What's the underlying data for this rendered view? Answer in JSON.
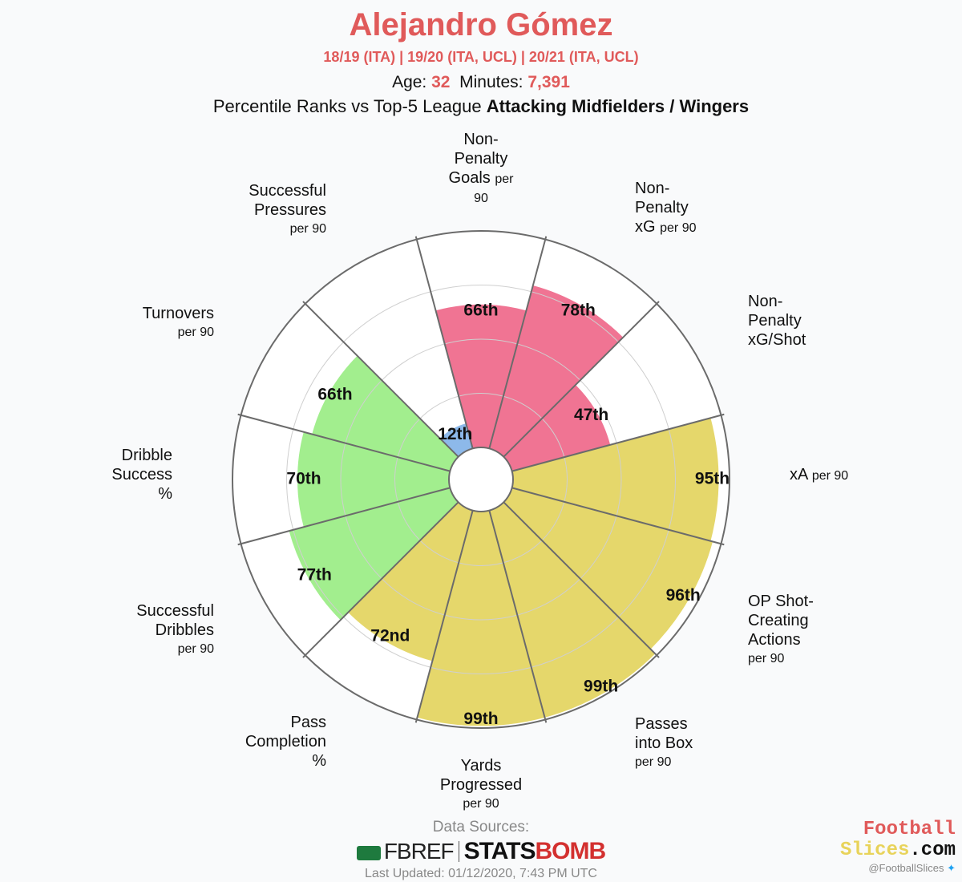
{
  "header": {
    "title": "Alejandro Gómez",
    "seasons": "18/19 (ITA)  |  19/20 (ITA, UCL)  |  20/21 (ITA, UCL)",
    "age_label": "Age:",
    "age": "32",
    "minutes_label": "Minutes:",
    "minutes": "7,391",
    "subtitle_prefix": "Percentile Ranks vs Top-5 League",
    "subtitle_bold": "Attacking Midfielders / Wingers"
  },
  "colors": {
    "attacking": "#f07493",
    "possession": "#e5d76b",
    "dribbling": "#a2ee8e",
    "defending": "#8db9ea",
    "title": "#e05a5a"
  },
  "chart_data": {
    "type": "polar-bar",
    "title": "Alejandro Gómez",
    "scale": [
      0,
      100
    ],
    "categories": [
      {
        "metric": "Non-Penalty Goals",
        "unit": "per 90",
        "percentile": 66,
        "label": "66th",
        "group": "attacking"
      },
      {
        "metric": "Non-Penalty xG",
        "unit": "per 90",
        "percentile": 78,
        "label": "78th",
        "group": "attacking"
      },
      {
        "metric": "Non-Penalty xG/Shot",
        "unit": "",
        "percentile": 47,
        "label": "47th",
        "group": "attacking"
      },
      {
        "metric": "xA",
        "unit": "per 90",
        "percentile": 95,
        "label": "95th",
        "group": "possession"
      },
      {
        "metric": "OP Shot-Creating Actions",
        "unit": "per 90",
        "percentile": 96,
        "label": "96th",
        "group": "possession"
      },
      {
        "metric": "Passes into Box",
        "unit": "per 90",
        "percentile": 99,
        "label": "99th",
        "group": "possession"
      },
      {
        "metric": "Yards Progressed",
        "unit": "per 90",
        "percentile": 99,
        "label": "99th",
        "group": "possession"
      },
      {
        "metric": "Pass Completion",
        "unit": "%",
        "percentile": 72,
        "label": "72nd",
        "group": "possession"
      },
      {
        "metric": "Successful Dribbles",
        "unit": "per 90",
        "percentile": 77,
        "label": "77th",
        "group": "dribbling"
      },
      {
        "metric": "Dribble Success",
        "unit": "%",
        "percentile": 70,
        "label": "70th",
        "group": "dribbling"
      },
      {
        "metric": "Turnovers",
        "unit": "per 90",
        "percentile": 66,
        "label": "66th",
        "group": "dribbling"
      },
      {
        "metric": "Successful Pressures",
        "unit": "per 90",
        "percentile": 12,
        "label": "12th",
        "group": "defending"
      }
    ]
  },
  "axis_labels": {
    "npg": {
      "lines": [
        "Non-",
        "Penalty",
        "Goals"
      ],
      "unit": "per",
      "unit2": "90"
    },
    "npxg": {
      "lines": [
        "Non-",
        "Penalty",
        "xG"
      ],
      "unit": "per 90"
    },
    "xgshot": {
      "lines": [
        "Non-",
        "Penalty",
        "xG/Shot"
      ]
    },
    "xa": {
      "main": "xA",
      "unit": "per 90"
    },
    "sca": {
      "lines": [
        "OP Shot-",
        "Creating",
        "Actions"
      ],
      "unit": "per 90"
    },
    "pib": {
      "lines": [
        "Passes",
        "into Box"
      ],
      "unit": "per 90"
    },
    "yp": {
      "lines": [
        "Yards",
        "Progressed"
      ],
      "unit": "per 90"
    },
    "pc": {
      "lines": [
        "Pass",
        "Completion"
      ],
      "unit": "%"
    },
    "sd": {
      "lines": [
        "Successful",
        "Dribbles"
      ],
      "unit": "per 90"
    },
    "ds": {
      "lines": [
        "Dribble",
        "Success"
      ],
      "unit": "%"
    },
    "to": {
      "main": "Turnovers",
      "unit": "per 90"
    },
    "sp": {
      "lines": [
        "Successful",
        "Pressures"
      ],
      "unit": "per 90"
    }
  },
  "footer": {
    "data_sources": "Data Sources:",
    "fbref": "FBREF",
    "statsbomb_a": "STATS",
    "statsbomb_b": "BOMB",
    "updated": "Last Updated: 01/12/2020, 7:43 PM UTC"
  },
  "brand": {
    "line1": "Football",
    "line2a": "Slices",
    "line2b": ".com",
    "handle": "@FootballSlices"
  }
}
